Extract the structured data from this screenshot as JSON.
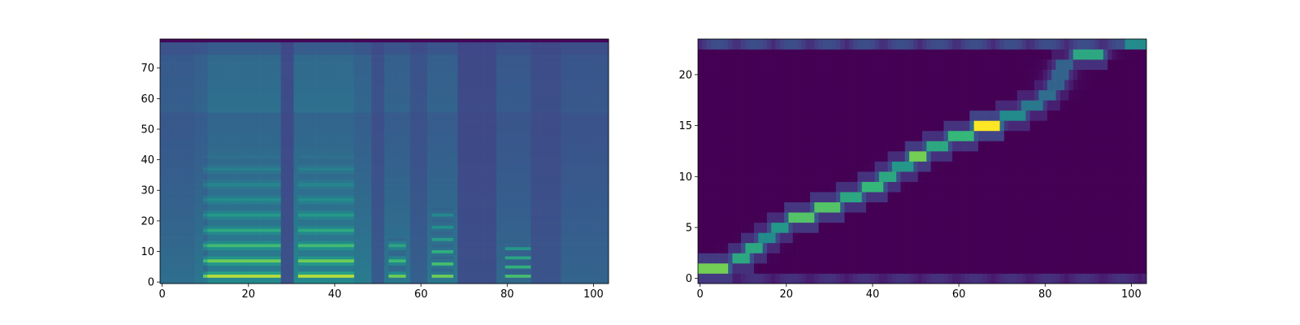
{
  "chart_data": [
    {
      "type": "heatmap",
      "title": "",
      "xlabel": "",
      "ylabel": "",
      "n_x": 104,
      "n_y": 80,
      "xlim": [
        -0.5,
        103.5
      ],
      "ylim": [
        -0.5,
        79.5
      ],
      "x_ticks": [
        0,
        20,
        40,
        60,
        80,
        100
      ],
      "y_ticks": [
        0,
        10,
        20,
        30,
        40,
        50,
        60,
        70
      ],
      "colormap": "viridis",
      "value_range": [
        0,
        1
      ],
      "column_energy": [
        {
          "x": [
            0,
            8
          ],
          "level": 0.45
        },
        {
          "x": [
            8,
            11
          ],
          "level": 0.55
        },
        {
          "x": [
            11,
            28
          ],
          "level": 0.75
        },
        {
          "x": [
            28,
            31
          ],
          "level": 0.15
        },
        {
          "x": [
            31,
            45
          ],
          "level": 0.75
        },
        {
          "x": [
            45,
            49
          ],
          "level": 0.6
        },
        {
          "x": [
            49,
            52
          ],
          "level": 0.25
        },
        {
          "x": [
            52,
            58
          ],
          "level": 0.55
        },
        {
          "x": [
            58,
            62
          ],
          "level": 0.3
        },
        {
          "x": [
            62,
            69
          ],
          "level": 0.55
        },
        {
          "x": [
            69,
            78
          ],
          "level": 0.12
        },
        {
          "x": [
            78,
            86
          ],
          "level": 0.4
        },
        {
          "x": [
            86,
            93
          ],
          "level": 0.18
        },
        {
          "x": [
            93,
            104
          ],
          "level": 0.35
        }
      ],
      "harmonic_regions": [
        {
          "x": [
            10,
            28
          ],
          "y": [
            2,
            42
          ],
          "spacing": 5
        },
        {
          "x": [
            32,
            45
          ],
          "y": [
            2,
            42
          ],
          "spacing": 5
        },
        {
          "x": [
            53,
            57
          ],
          "y": [
            2,
            15
          ],
          "spacing": 5
        },
        {
          "x": [
            63,
            68
          ],
          "y": [
            2,
            25
          ],
          "spacing": 4
        },
        {
          "x": [
            80,
            86
          ],
          "y": [
            2,
            12
          ],
          "spacing": 3
        }
      ]
    },
    {
      "type": "heatmap",
      "title": "",
      "xlabel": "",
      "ylabel": "",
      "n_x": 104,
      "n_y": 24,
      "xlim": [
        -0.5,
        103.5
      ],
      "ylim": [
        -0.5,
        23.5
      ],
      "x_ticks": [
        0,
        20,
        40,
        60,
        80,
        100
      ],
      "y_ticks": [
        0,
        5,
        10,
        15,
        20
      ],
      "colormap": "viridis",
      "value_range": [
        0,
        1
      ],
      "alignment_path": [
        {
          "y": 1,
          "x": [
            0,
            6
          ],
          "peak": 0.85
        },
        {
          "y": 2,
          "x": [
            8,
            11
          ],
          "peak": 0.7
        },
        {
          "y": 3,
          "x": [
            11,
            14
          ],
          "peak": 0.7
        },
        {
          "y": 4,
          "x": [
            14,
            17
          ],
          "peak": 0.6
        },
        {
          "y": 5,
          "x": [
            17,
            20
          ],
          "peak": 0.65
        },
        {
          "y": 6,
          "x": [
            21,
            26
          ],
          "peak": 0.8
        },
        {
          "y": 7,
          "x": [
            27,
            32
          ],
          "peak": 0.8
        },
        {
          "y": 8,
          "x": [
            33,
            37
          ],
          "peak": 0.7
        },
        {
          "y": 9,
          "x": [
            38,
            42
          ],
          "peak": 0.75
        },
        {
          "y": 10,
          "x": [
            42,
            45
          ],
          "peak": 0.7
        },
        {
          "y": 11,
          "x": [
            45,
            49
          ],
          "peak": 0.65
        },
        {
          "y": 12,
          "x": [
            49,
            52
          ],
          "peak": 0.85
        },
        {
          "y": 13,
          "x": [
            53,
            57
          ],
          "peak": 0.7
        },
        {
          "y": 14,
          "x": [
            58,
            63
          ],
          "peak": 0.75
        },
        {
          "y": 15,
          "x": [
            64,
            69
          ],
          "peak": 1.0
        },
        {
          "y": 16,
          "x": [
            70,
            75
          ],
          "peak": 0.6
        },
        {
          "y": 17,
          "x": [
            75,
            79
          ],
          "peak": 0.5
        },
        {
          "y": 18,
          "x": [
            79,
            82
          ],
          "peak": 0.45
        },
        {
          "y": 19,
          "x": [
            81,
            84
          ],
          "peak": 0.4
        },
        {
          "y": 20,
          "x": [
            82,
            85
          ],
          "peak": 0.4
        },
        {
          "y": 21,
          "x": [
            83,
            86
          ],
          "peak": 0.4
        },
        {
          "y": 22,
          "x": [
            87,
            93
          ],
          "peak": 0.7
        }
      ],
      "edge_rows": [
        {
          "y": 23,
          "level": 0.3
        },
        {
          "y": 0,
          "level": 0.18
        }
      ]
    }
  ]
}
